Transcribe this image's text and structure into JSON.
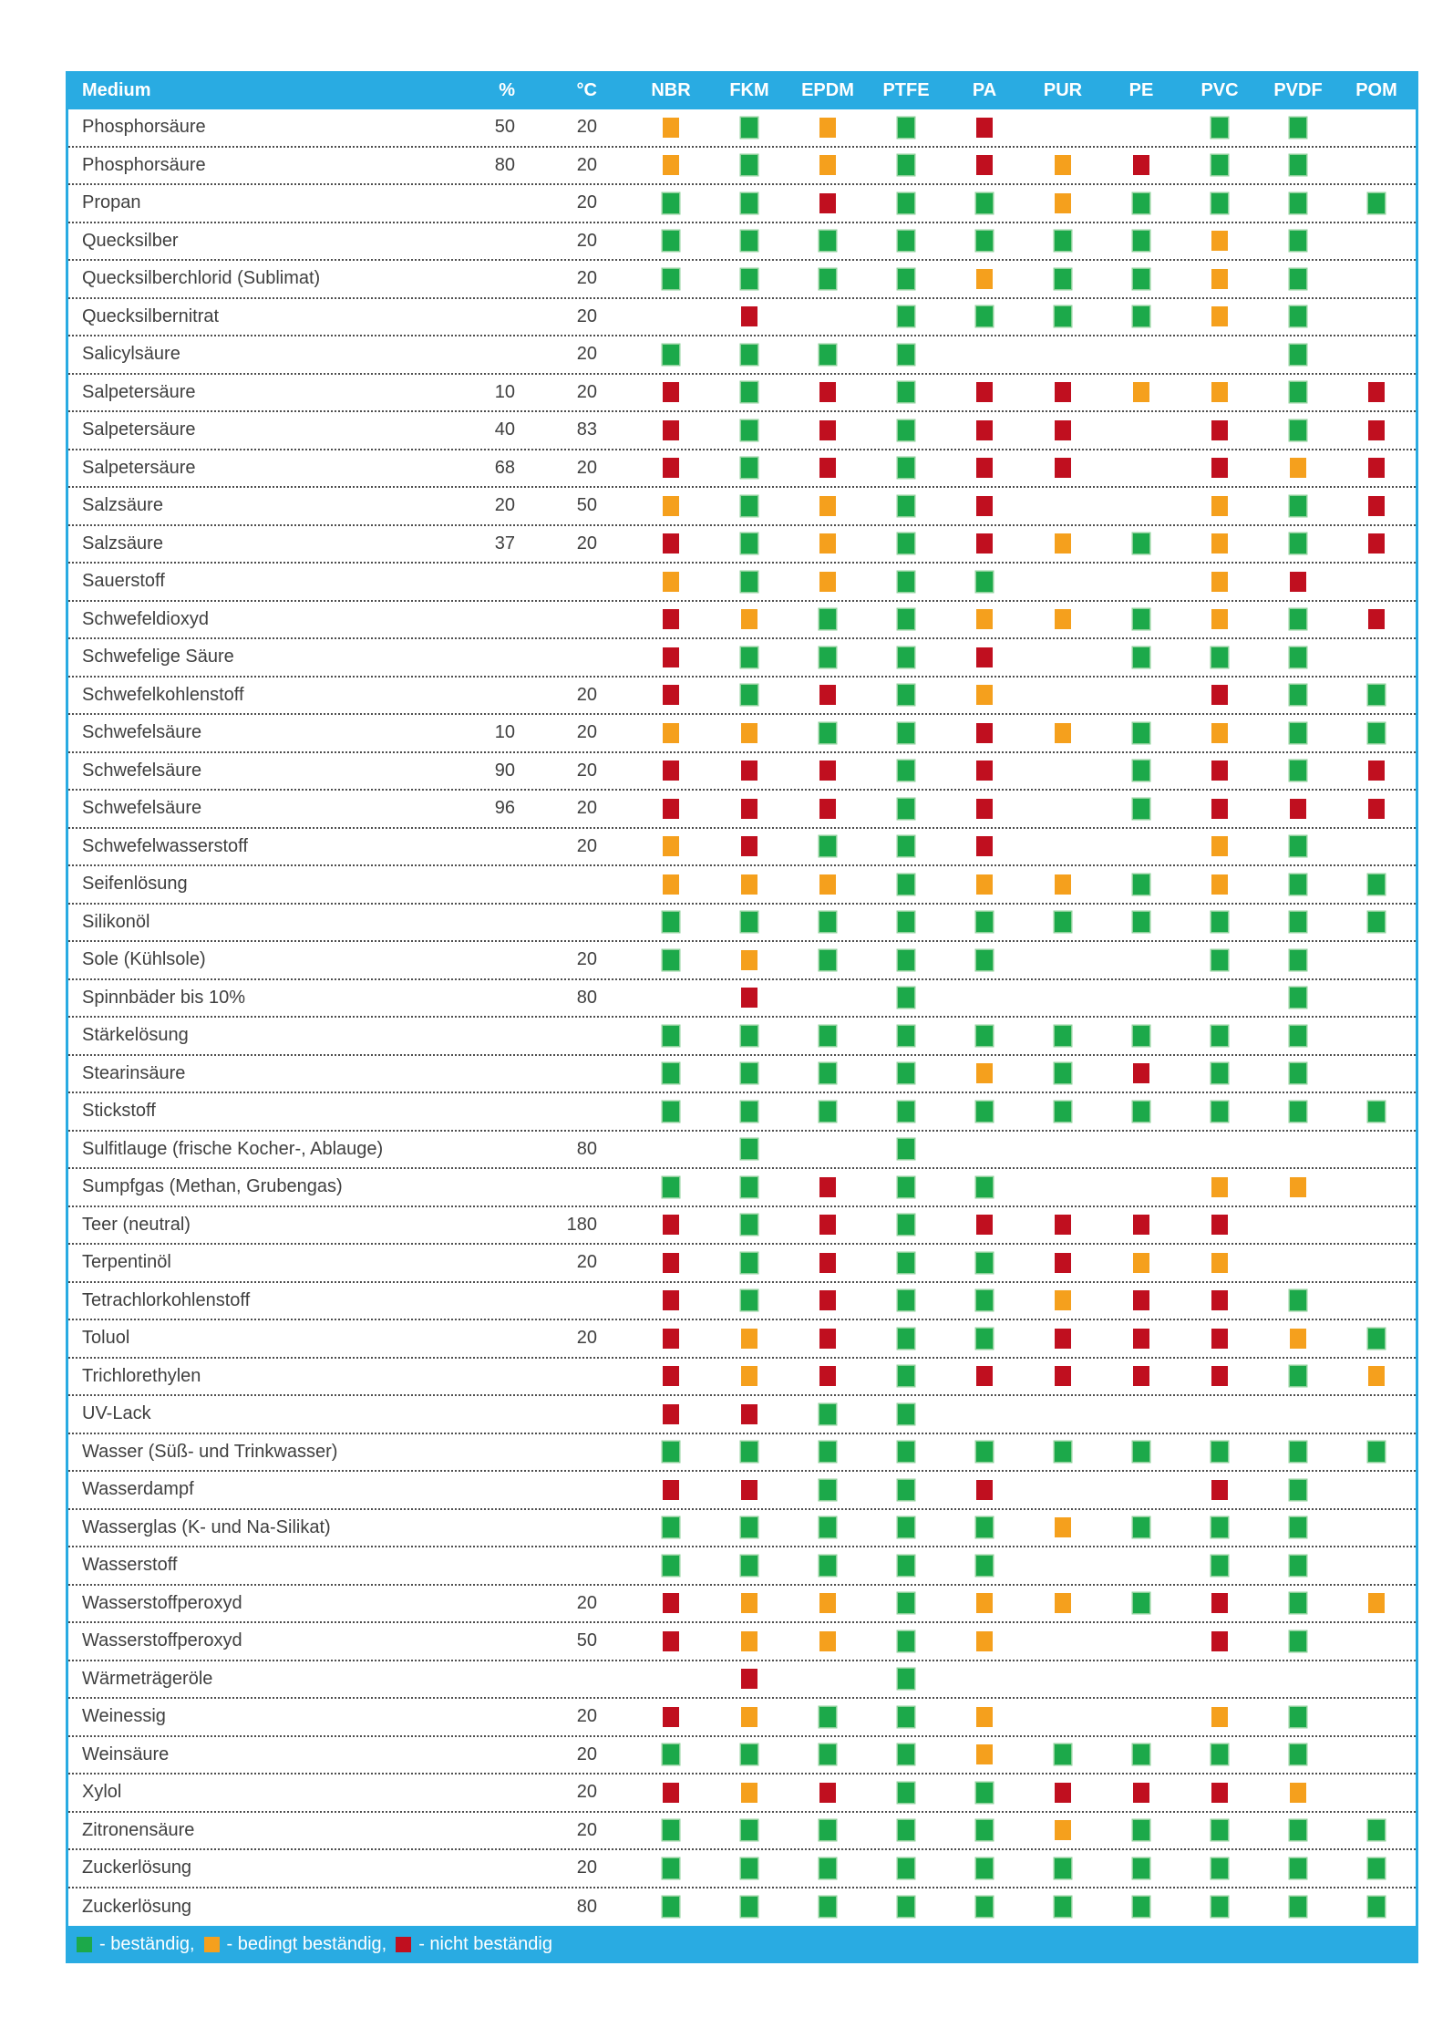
{
  "colors": {
    "green": "#1ca94a",
    "green_edge": "#8fd19b",
    "orange": "#f5a01d",
    "red": "#c00f1f",
    "header_bg": "#29abe2",
    "text": "#3f3f3f"
  },
  "header": {
    "columns": [
      "Medium",
      "%",
      "°C",
      "NBR",
      "FKM",
      "EPDM",
      "PTFE",
      "PA",
      "PUR",
      "PE",
      "PVC",
      "PVDF",
      "POM"
    ]
  },
  "legend": {
    "items": [
      {
        "key": "G",
        "label": "- beständig,"
      },
      {
        "key": "O",
        "label": "- bedingt beständig,"
      },
      {
        "key": "R",
        "label": "- nicht beständig"
      }
    ]
  },
  "rows": [
    {
      "medium": "Phosphorsäure",
      "pct": "50",
      "temp": "20",
      "cells": [
        "O",
        "G",
        "O",
        "G",
        "R",
        "",
        "",
        "G",
        "G",
        ""
      ]
    },
    {
      "medium": "Phosphorsäure",
      "pct": "80",
      "temp": "20",
      "cells": [
        "O",
        "G",
        "O",
        "G",
        "R",
        "O",
        "R",
        "G",
        "G",
        ""
      ]
    },
    {
      "medium": "Propan",
      "pct": "",
      "temp": "20",
      "cells": [
        "G",
        "G",
        "R",
        "G",
        "G",
        "O",
        "G",
        "G",
        "G",
        "G"
      ]
    },
    {
      "medium": "Quecksilber",
      "pct": "",
      "temp": "20",
      "cells": [
        "G",
        "G",
        "G",
        "G",
        "G",
        "G",
        "G",
        "O",
        "G",
        ""
      ]
    },
    {
      "medium": "Quecksilberchlorid (Sublimat)",
      "pct": "",
      "temp": "20",
      "cells": [
        "G",
        "G",
        "G",
        "G",
        "O",
        "G",
        "G",
        "O",
        "G",
        ""
      ]
    },
    {
      "medium": "Quecksilbernitrat",
      "pct": "",
      "temp": "20",
      "cells": [
        "",
        "R",
        "",
        "G",
        "G",
        "G",
        "G",
        "O",
        "G",
        ""
      ]
    },
    {
      "medium": "Salicylsäure",
      "pct": "",
      "temp": "20",
      "cells": [
        "G",
        "G",
        "G",
        "G",
        "",
        "",
        "",
        "",
        "G",
        ""
      ]
    },
    {
      "medium": "Salpetersäure",
      "pct": "10",
      "temp": "20",
      "cells": [
        "R",
        "G",
        "R",
        "G",
        "R",
        "R",
        "O",
        "O",
        "G",
        "R"
      ]
    },
    {
      "medium": "Salpetersäure",
      "pct": "40",
      "temp": "83",
      "cells": [
        "R",
        "G",
        "R",
        "G",
        "R",
        "R",
        "",
        "R",
        "G",
        "R"
      ]
    },
    {
      "medium": "Salpetersäure",
      "pct": "68",
      "temp": "20",
      "cells": [
        "R",
        "G",
        "R",
        "G",
        "R",
        "R",
        "",
        "R",
        "O",
        "R"
      ]
    },
    {
      "medium": "Salzsäure",
      "pct": "20",
      "temp": "50",
      "cells": [
        "O",
        "G",
        "O",
        "G",
        "R",
        "",
        "",
        "O",
        "G",
        "R"
      ]
    },
    {
      "medium": "Salzsäure",
      "pct": "37",
      "temp": "20",
      "cells": [
        "R",
        "G",
        "O",
        "G",
        "R",
        "O",
        "G",
        "O",
        "G",
        "R"
      ]
    },
    {
      "medium": "Sauerstoff",
      "pct": "",
      "temp": "",
      "cells": [
        "O",
        "G",
        "O",
        "G",
        "G",
        "",
        "",
        "O",
        "R",
        ""
      ]
    },
    {
      "medium": "Schwefeldioxyd",
      "pct": "",
      "temp": "",
      "cells": [
        "R",
        "O",
        "G",
        "G",
        "O",
        "O",
        "G",
        "O",
        "G",
        "R"
      ]
    },
    {
      "medium": "Schwefelige Säure",
      "pct": "",
      "temp": "",
      "cells": [
        "R",
        "G",
        "G",
        "G",
        "R",
        "",
        "G",
        "G",
        "G",
        ""
      ]
    },
    {
      "medium": "Schwefelkohlenstoff",
      "pct": "",
      "temp": "20",
      "cells": [
        "R",
        "G",
        "R",
        "G",
        "O",
        "",
        "",
        "R",
        "G",
        "G"
      ]
    },
    {
      "medium": "Schwefelsäure",
      "pct": "10",
      "temp": "20",
      "cells": [
        "O",
        "O",
        "G",
        "G",
        "R",
        "O",
        "G",
        "O",
        "G",
        "G"
      ]
    },
    {
      "medium": "Schwefelsäure",
      "pct": "90",
      "temp": "20",
      "cells": [
        "R",
        "R",
        "R",
        "G",
        "R",
        "",
        "G",
        "R",
        "G",
        "R"
      ]
    },
    {
      "medium": "Schwefelsäure",
      "pct": "96",
      "temp": "20",
      "cells": [
        "R",
        "R",
        "R",
        "G",
        "R",
        "",
        "G",
        "R",
        "R",
        "R"
      ]
    },
    {
      "medium": "Schwefelwasserstoff",
      "pct": "",
      "temp": "20",
      "cells": [
        "O",
        "R",
        "G",
        "G",
        "R",
        "",
        "",
        "O",
        "G",
        ""
      ]
    },
    {
      "medium": "Seifenlösung",
      "pct": "",
      "temp": "",
      "cells": [
        "O",
        "O",
        "O",
        "G",
        "O",
        "O",
        "G",
        "O",
        "G",
        "G"
      ]
    },
    {
      "medium": "Silikonöl",
      "pct": "",
      "temp": "",
      "cells": [
        "G",
        "G",
        "G",
        "G",
        "G",
        "G",
        "G",
        "G",
        "G",
        "G"
      ]
    },
    {
      "medium": "Sole (Kühlsole)",
      "pct": "",
      "temp": "20",
      "cells": [
        "G",
        "O",
        "G",
        "G",
        "G",
        "",
        "",
        "G",
        "G",
        ""
      ]
    },
    {
      "medium": "Spinnbäder bis 10%",
      "pct": "",
      "temp": "80",
      "cells": [
        "",
        "R",
        "",
        "G",
        "",
        "",
        "",
        "",
        "G",
        ""
      ]
    },
    {
      "medium": "Stärkelösung",
      "pct": "",
      "temp": "",
      "cells": [
        "G",
        "G",
        "G",
        "G",
        "G",
        "G",
        "G",
        "G",
        "G",
        ""
      ]
    },
    {
      "medium": "Stearinsäure",
      "pct": "",
      "temp": "",
      "cells": [
        "G",
        "G",
        "G",
        "G",
        "O",
        "G",
        "R",
        "G",
        "G",
        ""
      ]
    },
    {
      "medium": "Stickstoff",
      "pct": "",
      "temp": "",
      "cells": [
        "G",
        "G",
        "G",
        "G",
        "G",
        "G",
        "G",
        "G",
        "G",
        "G"
      ]
    },
    {
      "medium": "Sulfitlauge (frische Kocher-, Ablauge)",
      "pct": "",
      "temp": "80",
      "cells": [
        "",
        "G",
        "",
        "G",
        "",
        "",
        "",
        "",
        "",
        ""
      ]
    },
    {
      "medium": "Sumpfgas (Methan, Grubengas)",
      "pct": "",
      "temp": "",
      "cells": [
        "G",
        "G",
        "R",
        "G",
        "G",
        "",
        "",
        "O",
        "O",
        ""
      ]
    },
    {
      "medium": "Teer (neutral)",
      "pct": "",
      "temp": "180",
      "cells": [
        "R",
        "G",
        "R",
        "G",
        "R",
        "R",
        "R",
        "R",
        "",
        ""
      ]
    },
    {
      "medium": "Terpentinöl",
      "pct": "",
      "temp": "20",
      "cells": [
        "R",
        "G",
        "R",
        "G",
        "G",
        "R",
        "O",
        "O",
        "",
        ""
      ]
    },
    {
      "medium": "Tetrachlorkohlenstoff",
      "pct": "",
      "temp": "",
      "cells": [
        "R",
        "G",
        "R",
        "G",
        "G",
        "O",
        "R",
        "R",
        "G",
        ""
      ]
    },
    {
      "medium": "Toluol",
      "pct": "",
      "temp": "20",
      "cells": [
        "R",
        "O",
        "R",
        "G",
        "G",
        "R",
        "R",
        "R",
        "O",
        "G"
      ]
    },
    {
      "medium": "Trichlorethylen",
      "pct": "",
      "temp": "",
      "cells": [
        "R",
        "O",
        "R",
        "G",
        "R",
        "R",
        "R",
        "R",
        "G",
        "O"
      ]
    },
    {
      "medium": "UV-Lack",
      "pct": "",
      "temp": "",
      "cells": [
        "R",
        "R",
        "G",
        "G",
        "",
        "",
        "",
        "",
        "",
        ""
      ]
    },
    {
      "medium": "Wasser (Süß- und Trinkwasser)",
      "pct": "",
      "temp": "",
      "cells": [
        "G",
        "G",
        "G",
        "G",
        "G",
        "G",
        "G",
        "G",
        "G",
        "G"
      ]
    },
    {
      "medium": "Wasserdampf",
      "pct": "",
      "temp": "",
      "cells": [
        "R",
        "R",
        "G",
        "G",
        "R",
        "",
        "",
        "R",
        "G",
        ""
      ]
    },
    {
      "medium": "Wasserglas (K- und Na-Silikat)",
      "pct": "",
      "temp": "",
      "cells": [
        "G",
        "G",
        "G",
        "G",
        "G",
        "O",
        "G",
        "G",
        "G",
        ""
      ]
    },
    {
      "medium": "Wasserstoff",
      "pct": "",
      "temp": "",
      "cells": [
        "G",
        "G",
        "G",
        "G",
        "G",
        "",
        "",
        "G",
        "G",
        ""
      ]
    },
    {
      "medium": "Wasserstoffperoxyd",
      "pct": "",
      "temp": "20",
      "cells": [
        "R",
        "O",
        "O",
        "G",
        "O",
        "O",
        "G",
        "R",
        "G",
        "O"
      ]
    },
    {
      "medium": "Wasserstoffperoxyd",
      "pct": "",
      "temp": "50",
      "cells": [
        "R",
        "O",
        "O",
        "G",
        "O",
        "",
        "",
        "R",
        "G",
        ""
      ]
    },
    {
      "medium": "Wärmeträgeröle",
      "pct": "",
      "temp": "",
      "cells": [
        "",
        "R",
        "",
        "G",
        "",
        "",
        "",
        "",
        "",
        ""
      ]
    },
    {
      "medium": "Weinessig",
      "pct": "",
      "temp": "20",
      "cells": [
        "R",
        "O",
        "G",
        "G",
        "O",
        "",
        "",
        "O",
        "G",
        ""
      ]
    },
    {
      "medium": "Weinsäure",
      "pct": "",
      "temp": "20",
      "cells": [
        "G",
        "G",
        "G",
        "G",
        "O",
        "G",
        "G",
        "G",
        "G",
        ""
      ]
    },
    {
      "medium": "Xylol",
      "pct": "",
      "temp": "20",
      "cells": [
        "R",
        "O",
        "R",
        "G",
        "G",
        "R",
        "R",
        "R",
        "O",
        ""
      ]
    },
    {
      "medium": "Zitronensäure",
      "pct": "",
      "temp": "20",
      "cells": [
        "G",
        "G",
        "G",
        "G",
        "G",
        "O",
        "G",
        "G",
        "G",
        "G"
      ]
    },
    {
      "medium": "Zuckerlösung",
      "pct": "",
      "temp": "20",
      "cells": [
        "G",
        "G",
        "G",
        "G",
        "G",
        "G",
        "G",
        "G",
        "G",
        "G"
      ]
    },
    {
      "medium": "Zuckerlösung",
      "pct": "",
      "temp": "80",
      "cells": [
        "G",
        "G",
        "G",
        "G",
        "G",
        "G",
        "G",
        "G",
        "G",
        "G"
      ]
    }
  ]
}
